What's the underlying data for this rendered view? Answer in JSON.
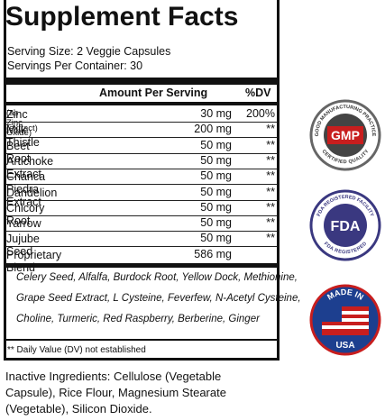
{
  "label": {
    "title": "Supplement Facts",
    "serving_size": "Serving Size: 2 Veggie Capsules",
    "servings_per_container": "Servings Per Container: 30",
    "header": {
      "amount": "Amount Per Serving",
      "dv": "%DV"
    },
    "rows": [
      {
        "name": "Zinc",
        "note": "(as Zinc Oxide)",
        "amount": "30 mg",
        "dv": "200%"
      },
      {
        "name": "Milk Thistle",
        "note": "(extract)",
        "amount": "200 mg",
        "dv": "**"
      },
      {
        "name": "Beet Root",
        "amount": "50 mg",
        "dv": "**"
      },
      {
        "name": "Artichoke Extract",
        "amount": "50 mg",
        "dv": "**"
      },
      {
        "name": "Chanca Piedra Extract",
        "amount": "50 mg",
        "dv": "**"
      },
      {
        "name": "Dandelion",
        "amount": "50 mg",
        "dv": "**"
      },
      {
        "name": "Chicory Root",
        "amount": "50 mg",
        "dv": "**"
      },
      {
        "name": "Yarrow",
        "amount": "50 mg",
        "dv": "**"
      },
      {
        "name": "Jujube Seed",
        "amount": "50 mg",
        "dv": "**"
      },
      {
        "name": "Proprietary Blend",
        "amount": "586 mg"
      }
    ],
    "blend_lines": [
      "Celery Seed, Alfalfa, Burdock Root, Yellow Dock, Methionine,",
      "Grape Seed Extract, L Cysteine, Feverfew, N-Acetyl Cysteine,",
      "Choline, Turmeric, Red Raspberry, Berberine, Ginger"
    ],
    "footnote": "** Daily Value (DV) not established",
    "inactive_lines": [
      "Inactive Ingredients: Cellulose (Vegetable",
      "Capsule), Rice Flour, Magnesium Stearate",
      "(Vegetable), Silicon Dioxide."
    ]
  },
  "badges": {
    "gmp": {
      "top": "GOOD MANUFACTURING PRACTICE",
      "center": "GMP",
      "bottom": "CERTIFIED QUALITY"
    },
    "fda": {
      "top": "FDA REGISTERED FACILITY",
      "center": "FDA",
      "bottom": "FDA REGISTERED"
    },
    "usa": {
      "top": "MADE IN",
      "bottom": "USA"
    }
  }
}
